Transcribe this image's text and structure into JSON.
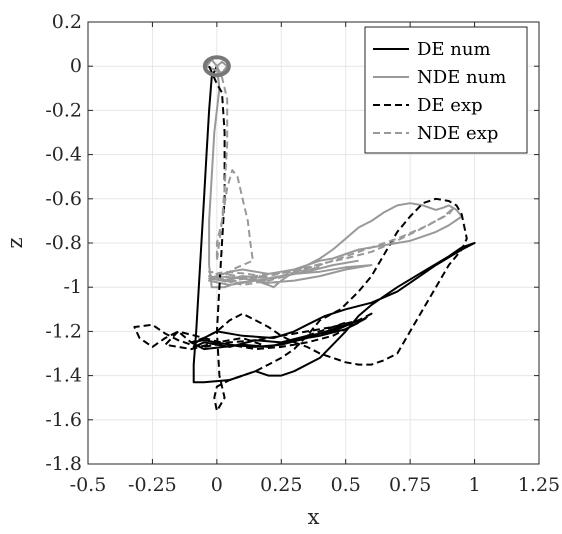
{
  "chart_data": {
    "type": "line",
    "title": "",
    "xlabel": "x",
    "ylabel": "z",
    "xlim": [
      -0.5,
      1.25
    ],
    "ylim": [
      -1.8,
      0.2
    ],
    "grid": true,
    "legend_position": "top-right",
    "x_ticks": [
      {
        "value": -0.5,
        "label": "-0.5"
      },
      {
        "value": -0.25,
        "label": "-0.25"
      },
      {
        "value": 0,
        "label": "0"
      },
      {
        "value": 0.25,
        "label": "0.25"
      },
      {
        "value": 0.5,
        "label": "0.5"
      },
      {
        "value": 0.75,
        "label": "0.75"
      },
      {
        "value": 1,
        "label": "1"
      },
      {
        "value": 1.25,
        "label": "1.25"
      }
    ],
    "y_ticks": [
      {
        "value": 0.2,
        "label": "0.2"
      },
      {
        "value": 0,
        "label": "0"
      },
      {
        "value": -0.2,
        "label": "-0.2"
      },
      {
        "value": -0.4,
        "label": "-0.4"
      },
      {
        "value": -0.6,
        "label": "-0.6"
      },
      {
        "value": -0.8,
        "label": "-0.8"
      },
      {
        "value": -1,
        "label": "-1"
      },
      {
        "value": -1.2,
        "label": "-1.2"
      },
      {
        "value": -1.4,
        "label": "-1.4"
      },
      {
        "value": -1.6,
        "label": "-1.6"
      },
      {
        "value": -1.8,
        "label": "-1.8"
      }
    ],
    "series": [
      {
        "name": "DE num",
        "color": "#000000",
        "dash": "solid",
        "x": [
          0,
          -0.02,
          -0.03,
          -0.04,
          -0.05,
          -0.06,
          -0.07,
          -0.08,
          -0.09,
          -0.09,
          -0.05,
          0.05,
          0.15,
          0.2,
          0.25,
          0.3,
          0.4,
          0.5,
          0.55,
          0.6,
          0.7,
          0.8,
          0.9,
          0.95,
          1.0,
          0.95,
          0.85,
          0.75,
          0.7,
          0.6,
          0.5,
          0.42,
          0.35,
          0.3,
          0.22,
          0.1,
          0.0,
          -0.05,
          -0.08,
          -0.09,
          -0.05,
          0.05,
          0.15,
          0.25,
          0.35,
          0.45,
          0.55,
          0.45,
          0.35,
          0.25,
          0.15,
          0.05,
          -0.05,
          -0.1,
          -0.05,
          0.1,
          0.2,
          0.3,
          0.4,
          0.5,
          0.58
        ],
        "y": [
          0,
          -0.05,
          -0.2,
          -0.4,
          -0.6,
          -0.8,
          -1.0,
          -1.2,
          -1.35,
          -1.43,
          -1.43,
          -1.42,
          -1.38,
          -1.4,
          -1.4,
          -1.38,
          -1.32,
          -1.2,
          -1.13,
          -1.08,
          -1.0,
          -0.93,
          -0.86,
          -0.82,
          -0.8,
          -0.83,
          -0.9,
          -0.98,
          -1.02,
          -1.07,
          -1.1,
          -1.13,
          -1.17,
          -1.2,
          -1.23,
          -1.22,
          -1.2,
          -1.23,
          -1.25,
          -1.27,
          -1.25,
          -1.27,
          -1.24,
          -1.25,
          -1.22,
          -1.2,
          -1.15,
          -1.19,
          -1.23,
          -1.26,
          -1.27,
          -1.26,
          -1.24,
          -1.25,
          -1.28,
          -1.26,
          -1.27,
          -1.24,
          -1.22,
          -1.19,
          -1.14
        ]
      },
      {
        "name": "NDE num",
        "color": "#999999",
        "dash": "solid",
        "x": [
          0,
          -0.02,
          -0.04,
          0.02,
          0.04,
          0.02,
          0,
          0.01,
          -0.01,
          -0.02,
          -0.03,
          -0.03,
          -0.02,
          0.03,
          0.08,
          0.15,
          0.2,
          0.22,
          0.25,
          0.3,
          0.35,
          0.4,
          0.45,
          0.5,
          0.55,
          0.6,
          0.65,
          0.7,
          0.75,
          0.8,
          0.85,
          0.88,
          0.9,
          0.93,
          0.95,
          0.9,
          0.85,
          0.8,
          0.75,
          0.7,
          0.65,
          0.6,
          0.55,
          0.5,
          0.45,
          0.4,
          0.35,
          0.3,
          0.25,
          0.2,
          0.15,
          0.1,
          0.05,
          0.0,
          -0.03,
          0.02,
          0.1,
          0.2,
          0.3,
          0.4,
          0.5,
          0.6,
          0.5,
          0.4,
          0.3,
          0.2,
          0.1,
          0.0,
          -0.03,
          0.05,
          0.15,
          0.25,
          0.35,
          0.45,
          0.55
        ],
        "y": [
          0,
          0.03,
          0.0,
          -0.03,
          0.0,
          0.02,
          0,
          -0.1,
          -0.3,
          -0.5,
          -0.7,
          -0.9,
          -1.0,
          -1.0,
          -0.98,
          -0.97,
          -0.99,
          -1.0,
          -0.97,
          -0.93,
          -0.9,
          -0.87,
          -0.83,
          -0.78,
          -0.73,
          -0.7,
          -0.66,
          -0.63,
          -0.62,
          -0.63,
          -0.65,
          -0.64,
          -0.63,
          -0.65,
          -0.68,
          -0.72,
          -0.75,
          -0.77,
          -0.79,
          -0.8,
          -0.81,
          -0.82,
          -0.83,
          -0.85,
          -0.87,
          -0.88,
          -0.9,
          -0.92,
          -0.93,
          -0.94,
          -0.93,
          -0.92,
          -0.93,
          -0.95,
          -0.96,
          -0.97,
          -0.95,
          -0.96,
          -0.94,
          -0.93,
          -0.91,
          -0.9,
          -0.92,
          -0.95,
          -0.97,
          -0.98,
          -0.96,
          -0.95,
          -0.97,
          -0.99,
          -0.97,
          -0.95,
          -0.93,
          -0.9,
          -0.88
        ]
      },
      {
        "name": "DE exp",
        "color": "#000000",
        "dash": "dashed",
        "x": [
          -0.03,
          0.0,
          0.02,
          0.03,
          0.03,
          0.02,
          0.01,
          0.0,
          0.01,
          0.03,
          0.0,
          -0.01,
          0.0,
          0.05,
          0.1,
          0.15,
          0.2,
          0.25,
          0.3,
          0.35,
          0.4,
          0.48,
          0.55,
          0.6,
          0.65,
          0.7,
          0.75,
          0.8,
          0.85,
          0.9,
          0.93,
          0.95,
          0.97,
          0.95,
          0.9,
          0.85,
          0.8,
          0.75,
          0.7,
          0.65,
          0.6,
          0.55,
          0.5,
          0.45,
          0.4,
          0.35,
          0.3,
          0.25,
          0.2,
          0.15,
          0.1,
          0.05,
          0.0,
          -0.05,
          -0.1,
          -0.15,
          -0.2,
          -0.25,
          -0.3,
          -0.32,
          -0.25,
          -0.2,
          -0.15,
          -0.1,
          -0.05,
          0.05,
          0.15,
          0.25,
          0.35,
          0.45,
          0.55,
          0.6,
          0.55,
          0.45,
          0.35,
          0.25,
          0.15,
          0.05,
          -0.05,
          -0.15,
          -0.2,
          -0.1,
          0.0,
          0.1,
          0.2,
          0.3,
          0.4,
          0.5
        ],
        "y": [
          0.0,
          -0.08,
          -0.12,
          -0.3,
          -0.6,
          -0.8,
          -1.0,
          -1.2,
          -1.4,
          -1.5,
          -1.56,
          -1.5,
          -1.45,
          -1.42,
          -1.4,
          -1.38,
          -1.35,
          -1.32,
          -1.28,
          -1.22,
          -1.15,
          -1.1,
          -1.02,
          -0.95,
          -0.85,
          -0.75,
          -0.68,
          -0.62,
          -0.6,
          -0.61,
          -0.63,
          -0.67,
          -0.78,
          -0.83,
          -0.9,
          -1.0,
          -1.1,
          -1.2,
          -1.3,
          -1.33,
          -1.35,
          -1.35,
          -1.34,
          -1.32,
          -1.3,
          -1.27,
          -1.25,
          -1.22,
          -1.18,
          -1.15,
          -1.12,
          -1.15,
          -1.2,
          -1.23,
          -1.25,
          -1.2,
          -1.23,
          -1.27,
          -1.23,
          -1.18,
          -1.17,
          -1.21,
          -1.24,
          -1.26,
          -1.27,
          -1.25,
          -1.24,
          -1.22,
          -1.2,
          -1.18,
          -1.15,
          -1.12,
          -1.16,
          -1.22,
          -1.25,
          -1.27,
          -1.28,
          -1.26,
          -1.23,
          -1.2,
          -1.26,
          -1.28,
          -1.25,
          -1.23,
          -1.27,
          -1.24,
          -1.2,
          -1.16
        ]
      },
      {
        "name": "NDE exp",
        "color": "#999999",
        "dash": "dashed",
        "x": [
          0,
          0.02,
          0.04,
          0.04,
          0.03,
          0.02,
          0.0,
          0.0,
          0.02,
          0.04,
          0.06,
          0.08,
          0.1,
          0.12,
          0.13,
          0.14,
          0.1,
          0.06,
          0.03,
          0.02,
          0.05,
          0.1,
          0.2,
          0.3,
          0.4,
          0.5,
          0.6,
          0.7,
          0.8,
          0.85,
          0.9,
          0.92,
          0.88,
          0.82,
          0.75,
          0.68,
          0.6,
          0.5,
          0.42,
          0.35,
          0.28,
          0.2,
          0.12,
          0.05,
          -0.03,
          0.03,
          0.12,
          0.22,
          0.32,
          0.4,
          0.3,
          0.2,
          0.1,
          0.0,
          -0.03,
          0.08,
          0.18,
          0.28,
          0.38
        ],
        "y": [
          0,
          -0.05,
          -0.15,
          -0.35,
          -0.55,
          -0.7,
          -0.8,
          -0.88,
          -0.7,
          -0.55,
          -0.47,
          -0.5,
          -0.6,
          -0.7,
          -0.8,
          -0.88,
          -0.9,
          -0.92,
          -0.95,
          -0.97,
          -0.98,
          -0.96,
          -0.94,
          -0.93,
          -0.9,
          -0.86,
          -0.82,
          -0.78,
          -0.73,
          -0.7,
          -0.67,
          -0.64,
          -0.68,
          -0.72,
          -0.76,
          -0.8,
          -0.84,
          -0.87,
          -0.89,
          -0.91,
          -0.93,
          -0.95,
          -0.96,
          -0.97,
          -0.95,
          -0.93,
          -0.94,
          -0.96,
          -0.93,
          -0.91,
          -0.94,
          -0.97,
          -0.99,
          -0.96,
          -0.93,
          -0.95,
          -0.97,
          -0.94,
          -0.91
        ]
      }
    ]
  }
}
